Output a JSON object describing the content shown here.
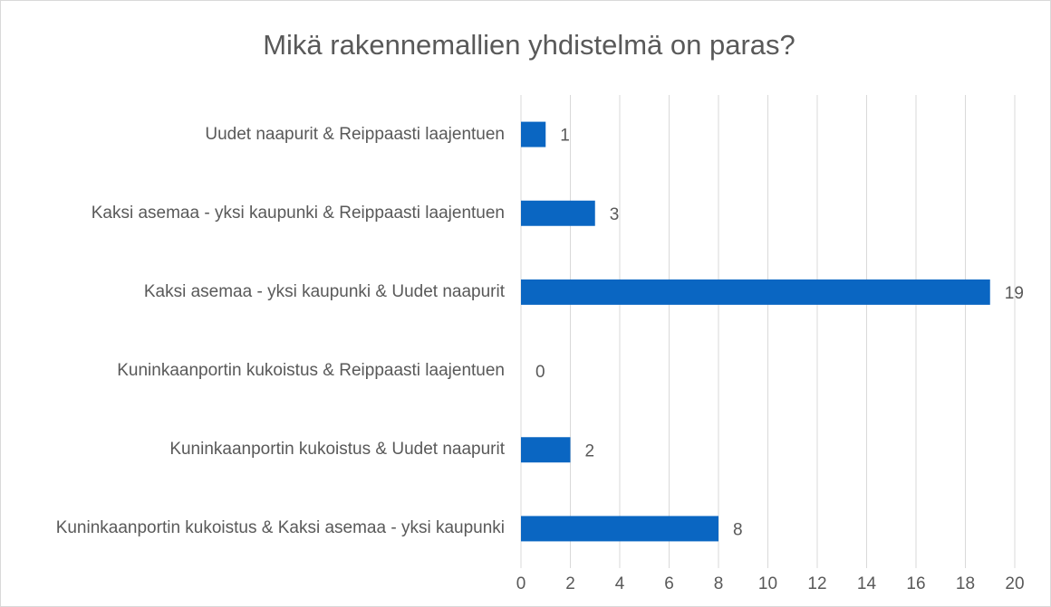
{
  "chart_data": {
    "type": "bar",
    "orientation": "horizontal",
    "title": "Mikä rakennemallien yhdistelmä on paras?",
    "categories": [
      "Uudet naapurit & Reippaasti laajentuen",
      "Kaksi asemaa - yksi kaupunki & Reippaasti laajentuen",
      "Kaksi asemaa - yksi kaupunki & Uudet naapurit",
      "Kuninkaanportin kukoistus & Reippaasti laajentuen",
      "Kuninkaanportin kukoistus & Uudet naapurit",
      "Kuninkaanportin kukoistus & Kaksi asemaa - yksi kaupunki"
    ],
    "values": [
      1,
      3,
      19,
      0,
      2,
      8
    ],
    "color": "#0a66c2",
    "xlim": [
      0,
      20
    ],
    "xticks": [
      0,
      2,
      4,
      6,
      8,
      10,
      12,
      14,
      16,
      18,
      20
    ],
    "grid": true
  }
}
